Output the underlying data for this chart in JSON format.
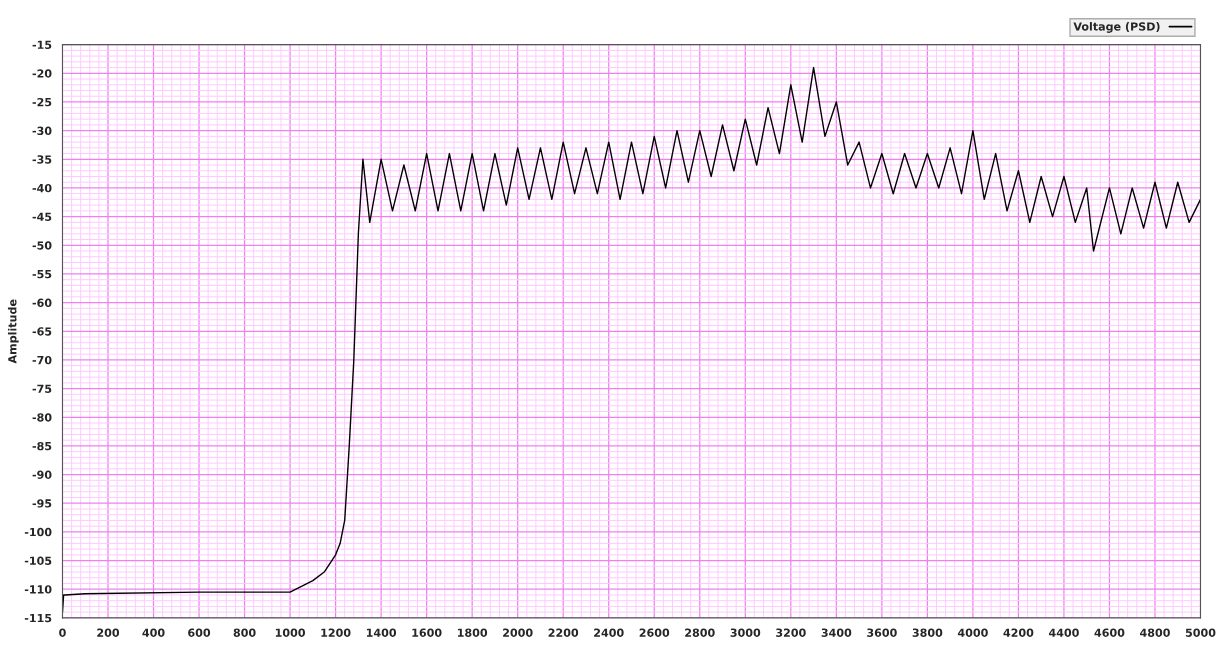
{
  "chart_data": {
    "type": "line",
    "ylabel": "Amplitude",
    "xlim": [
      0,
      5000
    ],
    "ylim": [
      -115,
      -15
    ],
    "xticks": [
      0,
      {
        "value": 40,
        "label": null
      },
      {
        "value": 80,
        "label": null
      },
      {
        "value": 120,
        "label": null
      },
      {
        "value": 160,
        "label": null
      },
      200,
      {
        "value": 240,
        "label": null
      },
      {
        "value": 280,
        "label": null
      },
      {
        "value": 320,
        "label": null
      },
      {
        "value": 360,
        "label": null
      },
      400,
      {
        "value": 440,
        "label": null
      },
      {
        "value": 480,
        "label": null
      },
      {
        "value": 520,
        "label": null
      },
      {
        "value": 560,
        "label": null
      },
      600,
      {
        "value": 640,
        "label": null
      },
      {
        "value": 680,
        "label": null
      },
      {
        "value": 720,
        "label": null
      },
      {
        "value": 760,
        "label": null
      },
      800,
      {
        "value": 840,
        "label": null
      },
      {
        "value": 880,
        "label": null
      },
      {
        "value": 920,
        "label": null
      },
      {
        "value": 960,
        "label": null
      },
      1000,
      {
        "value": 1040,
        "label": null
      },
      {
        "value": 1080,
        "label": null
      },
      {
        "value": 1120,
        "label": null
      },
      {
        "value": 1160,
        "label": null
      },
      1200,
      {
        "value": 1240,
        "label": null
      },
      {
        "value": 1280,
        "label": null
      },
      {
        "value": 1320,
        "label": null
      },
      {
        "value": 1360,
        "label": null
      },
      1400,
      {
        "value": 1440,
        "label": null
      },
      {
        "value": 1480,
        "label": null
      },
      {
        "value": 1520,
        "label": null
      },
      {
        "value": 1560,
        "label": null
      },
      1600,
      {
        "value": 1640,
        "label": null
      },
      {
        "value": 1680,
        "label": null
      },
      {
        "value": 1720,
        "label": null
      },
      {
        "value": 1760,
        "label": null
      },
      1800,
      {
        "value": 1840,
        "label": null
      },
      {
        "value": 1880,
        "label": null
      },
      {
        "value": 1920,
        "label": null
      },
      {
        "value": 1960,
        "label": null
      },
      2000,
      {
        "value": 2040,
        "label": null
      },
      {
        "value": 2080,
        "label": null
      },
      {
        "value": 2120,
        "label": null
      },
      {
        "value": 2160,
        "label": null
      },
      2200,
      {
        "value": 2240,
        "label": null
      },
      {
        "value": 2280,
        "label": null
      },
      {
        "value": 2320,
        "label": null
      },
      {
        "value": 2360,
        "label": null
      },
      2400,
      {
        "value": 2440,
        "label": null
      },
      {
        "value": 2480,
        "label": null
      },
      {
        "value": 2520,
        "label": null
      },
      {
        "value": 2560,
        "label": null
      },
      2600,
      {
        "value": 2640,
        "label": null
      },
      {
        "value": 2680,
        "label": null
      },
      {
        "value": 2720,
        "label": null
      },
      {
        "value": 2760,
        "label": null
      },
      2800,
      {
        "value": 2840,
        "label": null
      },
      {
        "value": 2880,
        "label": null
      },
      {
        "value": 2920,
        "label": null
      },
      {
        "value": 2960,
        "label": null
      },
      3000,
      {
        "value": 3040,
        "label": null
      },
      {
        "value": 3080,
        "label": null
      },
      {
        "value": 3120,
        "label": null
      },
      {
        "value": 3160,
        "label": null
      },
      3200,
      {
        "value": 3240,
        "label": null
      },
      {
        "value": 3280,
        "label": null
      },
      {
        "value": 3320,
        "label": null
      },
      {
        "value": 3360,
        "label": null
      },
      3400,
      {
        "value": 3440,
        "label": null
      },
      {
        "value": 3480,
        "label": null
      },
      {
        "value": 3520,
        "label": null
      },
      {
        "value": 3560,
        "label": null
      },
      3600,
      {
        "value": 3640,
        "label": null
      },
      {
        "value": 3680,
        "label": null
      },
      {
        "value": 3720,
        "label": null
      },
      {
        "value": 3760,
        "label": null
      },
      3800,
      {
        "value": 3840,
        "label": null
      },
      {
        "value": 3880,
        "label": null
      },
      {
        "value": 3920,
        "label": null
      },
      {
        "value": 3960,
        "label": null
      },
      4000,
      {
        "value": 4040,
        "label": null
      },
      {
        "value": 4080,
        "label": null
      },
      {
        "value": 4120,
        "label": null
      },
      {
        "value": 4160,
        "label": null
      },
      4200,
      {
        "value": 4240,
        "label": null
      },
      {
        "value": 4280,
        "label": null
      },
      {
        "value": 4320,
        "label": null
      },
      {
        "value": 4360,
        "label": null
      },
      4400,
      {
        "value": 4440,
        "label": null
      },
      {
        "value": 4480,
        "label": null
      },
      {
        "value": 4520,
        "label": null
      },
      {
        "value": 4560,
        "label": null
      },
      4600,
      {
        "value": 4640,
        "label": null
      },
      {
        "value": 4680,
        "label": null
      },
      {
        "value": 4720,
        "label": null
      },
      {
        "value": 4760,
        "label": null
      },
      4800,
      {
        "value": 4840,
        "label": null
      },
      {
        "value": 4880,
        "label": null
      },
      {
        "value": 4920,
        "label": null
      },
      {
        "value": 4960,
        "label": null
      },
      5000
    ],
    "yticks": [
      -115,
      {
        "value": -114,
        "label": null
      },
      {
        "value": -113,
        "label": null
      },
      {
        "value": -112,
        "label": null
      },
      {
        "value": -111,
        "label": null
      },
      -110,
      {
        "value": -109,
        "label": null
      },
      {
        "value": -108,
        "label": null
      },
      {
        "value": -107,
        "label": null
      },
      {
        "value": -106,
        "label": null
      },
      -105,
      {
        "value": -104,
        "label": null
      },
      {
        "value": -103,
        "label": null
      },
      {
        "value": -102,
        "label": null
      },
      {
        "value": -101,
        "label": null
      },
      -100,
      {
        "value": -99,
        "label": null
      },
      {
        "value": -98,
        "label": null
      },
      {
        "value": -97,
        "label": null
      },
      {
        "value": -96,
        "label": null
      },
      -95,
      {
        "value": -94,
        "label": null
      },
      {
        "value": -93,
        "label": null
      },
      {
        "value": -92,
        "label": null
      },
      {
        "value": -91,
        "label": null
      },
      -90,
      {
        "value": -89,
        "label": null
      },
      {
        "value": -88,
        "label": null
      },
      {
        "value": -87,
        "label": null
      },
      {
        "value": -86,
        "label": null
      },
      -85,
      {
        "value": -84,
        "label": null
      },
      {
        "value": -83,
        "label": null
      },
      {
        "value": -82,
        "label": null
      },
      {
        "value": -81,
        "label": null
      },
      -80,
      {
        "value": -79,
        "label": null
      },
      {
        "value": -78,
        "label": null
      },
      {
        "value": -77,
        "label": null
      },
      {
        "value": -76,
        "label": null
      },
      -75,
      {
        "value": -74,
        "label": null
      },
      {
        "value": -73,
        "label": null
      },
      {
        "value": -72,
        "label": null
      },
      {
        "value": -71,
        "label": null
      },
      -70,
      {
        "value": -69,
        "label": null
      },
      {
        "value": -68,
        "label": null
      },
      {
        "value": -67,
        "label": null
      },
      {
        "value": -66,
        "label": null
      },
      -65,
      {
        "value": -64,
        "label": null
      },
      {
        "value": -63,
        "label": null
      },
      {
        "value": -62,
        "label": null
      },
      {
        "value": -61,
        "label": null
      },
      -60,
      {
        "value": -59,
        "label": null
      },
      {
        "value": -58,
        "label": null
      },
      {
        "value": -57,
        "label": null
      },
      {
        "value": -56,
        "label": null
      },
      -55,
      {
        "value": -54,
        "label": null
      },
      {
        "value": -53,
        "label": null
      },
      {
        "value": -52,
        "label": null
      },
      {
        "value": -51,
        "label": null
      },
      -50,
      {
        "value": -49,
        "label": null
      },
      {
        "value": -48,
        "label": null
      },
      {
        "value": -47,
        "label": null
      },
      {
        "value": -46,
        "label": null
      },
      -45,
      {
        "value": -44,
        "label": null
      },
      {
        "value": -43,
        "label": null
      },
      {
        "value": -42,
        "label": null
      },
      {
        "value": -41,
        "label": null
      },
      -40,
      {
        "value": -39,
        "label": null
      },
      {
        "value": -38,
        "label": null
      },
      {
        "value": -37,
        "label": null
      },
      {
        "value": -36,
        "label": null
      },
      -35,
      {
        "value": -34,
        "label": null
      },
      {
        "value": -33,
        "label": null
      },
      {
        "value": -32,
        "label": null
      },
      {
        "value": -31,
        "label": null
      },
      -30,
      {
        "value": -29,
        "label": null
      },
      {
        "value": -28,
        "label": null
      },
      {
        "value": -27,
        "label": null
      },
      {
        "value": -26,
        "label": null
      },
      -25,
      {
        "value": -24,
        "label": null
      },
      {
        "value": -23,
        "label": null
      },
      {
        "value": -22,
        "label": null
      },
      {
        "value": -21,
        "label": null
      },
      -20,
      {
        "value": -19,
        "label": null
      },
      {
        "value": -18,
        "label": null
      },
      {
        "value": -17,
        "label": null
      },
      {
        "value": -16,
        "label": null
      },
      -15
    ],
    "grid": true,
    "legend": "top right",
    "series": [
      {
        "name": "Voltage (PSD)",
        "color": "#000000",
        "x": [
          0,
          5,
          10,
          100,
          600,
          1000,
          1050,
          1100,
          1150,
          1200,
          1220,
          1240,
          1260,
          1280,
          1300,
          1320,
          1350,
          1400,
          1450,
          1500,
          1550,
          1600,
          1650,
          1700,
          1750,
          1800,
          1850,
          1900,
          1950,
          2000,
          2050,
          2100,
          2150,
          2200,
          2250,
          2300,
          2350,
          2400,
          2450,
          2500,
          2550,
          2600,
          2650,
          2700,
          2750,
          2800,
          2850,
          2900,
          2950,
          3000,
          3050,
          3100,
          3150,
          3200,
          3250,
          3300,
          3350,
          3400,
          3450,
          3500,
          3550,
          3600,
          3650,
          3700,
          3750,
          3800,
          3850,
          3900,
          3950,
          4000,
          4050,
          4100,
          4150,
          4200,
          4250,
          4300,
          4350,
          4400,
          4450,
          4500,
          4530,
          4600,
          4650,
          4700,
          4750,
          4800,
          4850,
          4900,
          4950,
          5000
        ],
        "values": [
          -114,
          -111,
          -111,
          -110.8,
          -110.5,
          -110.5,
          -109.5,
          -108.5,
          -107,
          -104,
          -102,
          -98,
          -85,
          -70,
          -48,
          -35,
          -46,
          -35,
          -44,
          -36,
          -44,
          -34,
          -44,
          -34,
          -44,
          -34,
          -44,
          -34,
          -43,
          -33,
          -42,
          -33,
          -42,
          -32,
          -41,
          -33,
          -41,
          -32,
          -42,
          -32,
          -41,
          -31,
          -40,
          -30,
          -39,
          -30,
          -38,
          -29,
          -37,
          -28,
          -36,
          -26,
          -34,
          -22,
          -32,
          -19,
          -31,
          -25,
          -36,
          -32,
          -40,
          -34,
          -41,
          -34,
          -40,
          -34,
          -40,
          -33,
          -41,
          -30,
          -42,
          -34,
          -44,
          -37,
          -46,
          -38,
          -45,
          -38,
          -46,
          -40,
          -51,
          -40,
          -48,
          -40,
          -47,
          -39,
          -47,
          -39,
          -46,
          -42
        ]
      }
    ]
  }
}
